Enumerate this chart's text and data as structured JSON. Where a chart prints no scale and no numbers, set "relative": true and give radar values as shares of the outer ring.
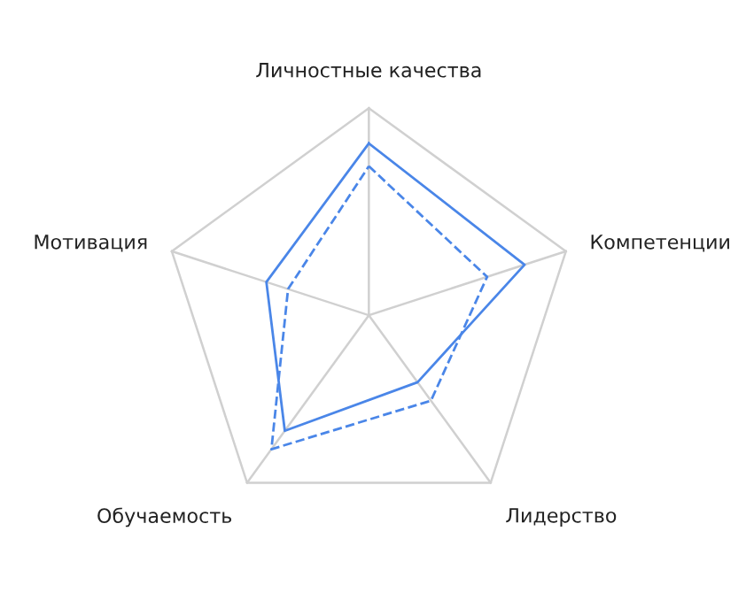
{
  "chart_data": {
    "type": "radar",
    "relative": true,
    "grid": true,
    "marker": "none",
    "categories": [
      "Личностные качества",
      "Компетенции",
      "Лидерство",
      "Обучаемость",
      "Мотивация"
    ],
    "series": [
      {
        "color": "#4a86e8",
        "line_style": "solid",
        "values": [
          0.83,
          0.79,
          0.4,
          0.69,
          0.52
        ]
      },
      {
        "color": "#4a86e8",
        "line_style": "dashed",
        "values": [
          0.72,
          0.6,
          0.51,
          0.8,
          0.41
        ]
      }
    ]
  }
}
